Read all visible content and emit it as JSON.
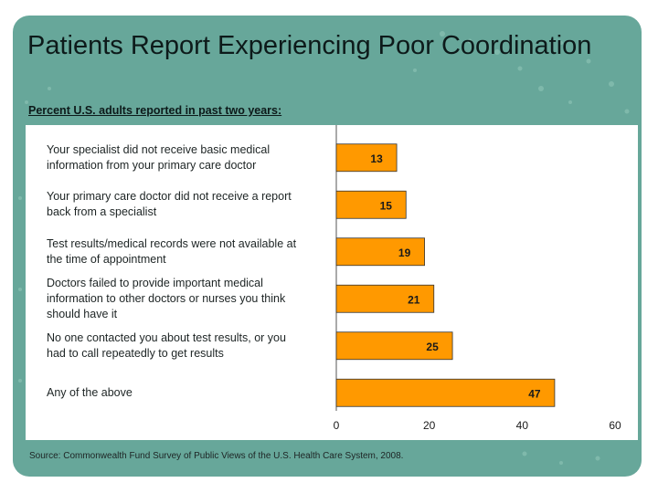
{
  "slide": {
    "title": "Patients Report Experiencing Poor Coordination",
    "subtitle": "Percent U.S. adults reported in past two years:",
    "source": "Source: Commonwealth Fund Survey of Public Views of the U.S. Health Care System, 2008."
  },
  "colors": {
    "slide_background": "#67a79a",
    "bar_fill": "#ff9900",
    "bar_border": "#333333",
    "panel": "#ffffff"
  },
  "chart_data": {
    "type": "bar",
    "orientation": "horizontal",
    "title": "",
    "xlabel": "",
    "ylabel": "",
    "categories": [
      "Your specialist did not receive basic medical information from your primary care doctor",
      "Your primary care doctor did not receive a report back from a specialist",
      "Test results/medical records were not available at the time of appointment",
      "Doctors failed to provide important medical information to other doctors or nurses you think should have it",
      "No one contacted you about test results, or you had to call repeatedly to get results",
      "Any of the above"
    ],
    "values": [
      13,
      15,
      19,
      21,
      25,
      47
    ],
    "value_labels": [
      "13",
      "15",
      "19",
      "21",
      "25",
      "47"
    ],
    "xlim": [
      0,
      60
    ],
    "xticks": [
      "0",
      "20",
      "40",
      "60"
    ],
    "grid": false,
    "legend": "none"
  }
}
